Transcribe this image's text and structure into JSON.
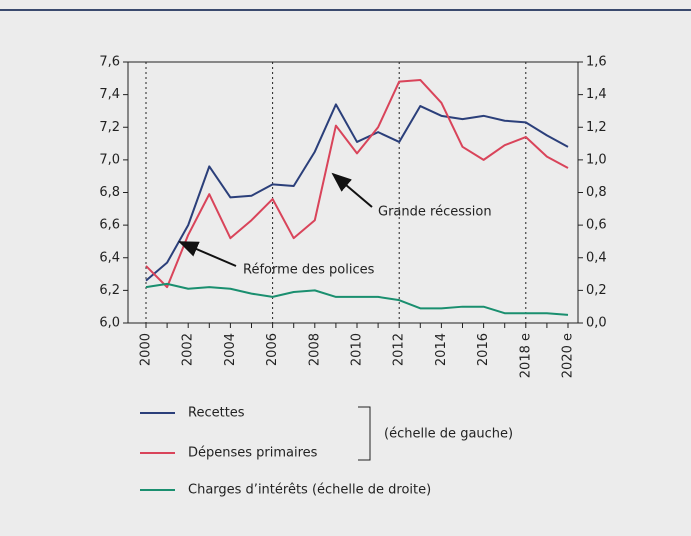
{
  "chart_data": {
    "type": "line",
    "categories": [
      "2000",
      null,
      "2002",
      null,
      "2004",
      null,
      "2006",
      null,
      "2008",
      null,
      "2010",
      null,
      "2012",
      null,
      "2014",
      null,
      "2016",
      null,
      "2018 e",
      null,
      "2020 e"
    ],
    "series": [
      {
        "name": "Recettes",
        "color": "#2b3f7a",
        "values": [
          6.26,
          6.37,
          6.6,
          6.96,
          6.77,
          6.78,
          6.85,
          6.84,
          7.05,
          7.34,
          7.11,
          7.17,
          7.11,
          7.33,
          7.27,
          7.25,
          7.27,
          7.24,
          7.23,
          7.15,
          7.08
        ]
      },
      {
        "name": "Dépenses primaires",
        "color": "#d9445a",
        "values": [
          6.35,
          6.22,
          6.54,
          6.79,
          6.52,
          6.63,
          6.76,
          6.52,
          6.63,
          7.21,
          7.04,
          7.2,
          7.48,
          7.49,
          7.35,
          7.08,
          7.0,
          7.09,
          7.14,
          7.02,
          6.95
        ]
      },
      {
        "name": "Charges d’intérêts (échelle de droite)",
        "color": "#1a8f6f",
        "axis": "y2",
        "values": [
          0.22,
          0.24,
          0.21,
          0.22,
          0.21,
          0.18,
          0.16,
          0.19,
          0.2,
          0.16,
          0.16,
          0.16,
          0.14,
          0.09,
          0.09,
          0.1,
          0.1,
          0.06,
          0.06,
          0.06,
          0.05
        ]
      }
    ],
    "legend_group_label": "(échelle de gauche)",
    "ylim": [
      6.0,
      7.6
    ],
    "yticks": [
      {
        "value": 6.0,
        "label": "6,0"
      },
      {
        "value": 6.2,
        "label": "6,2"
      },
      {
        "value": 6.4,
        "label": "6,4"
      },
      {
        "value": 6.6,
        "label": "6,6"
      },
      {
        "value": 6.8,
        "label": "6,8"
      },
      {
        "value": 7.0,
        "label": "7,0"
      },
      {
        "value": 7.2,
        "label": "7,2"
      },
      {
        "value": 7.4,
        "label": "7,4"
      },
      {
        "value": 7.6,
        "label": "7,6"
      }
    ],
    "y2lim": [
      0.0,
      1.6
    ],
    "y2ticks": [
      {
        "value": 0.0,
        "label": "0,0"
      },
      {
        "value": 0.2,
        "label": "0,2"
      },
      {
        "value": 0.4,
        "label": "0,4"
      },
      {
        "value": 0.6,
        "label": "0,6"
      },
      {
        "value": 0.8,
        "label": "0,8"
      },
      {
        "value": 1.0,
        "label": "1,0"
      },
      {
        "value": 1.2,
        "label": "1,2"
      },
      {
        "value": 1.4,
        "label": "1,4"
      },
      {
        "value": 1.6,
        "label": "1,6"
      }
    ],
    "vlines": [
      "2000",
      "2006",
      "2012",
      "2018 e"
    ],
    "annotations": [
      "Réforme des polices",
      "Grande récession"
    ]
  }
}
